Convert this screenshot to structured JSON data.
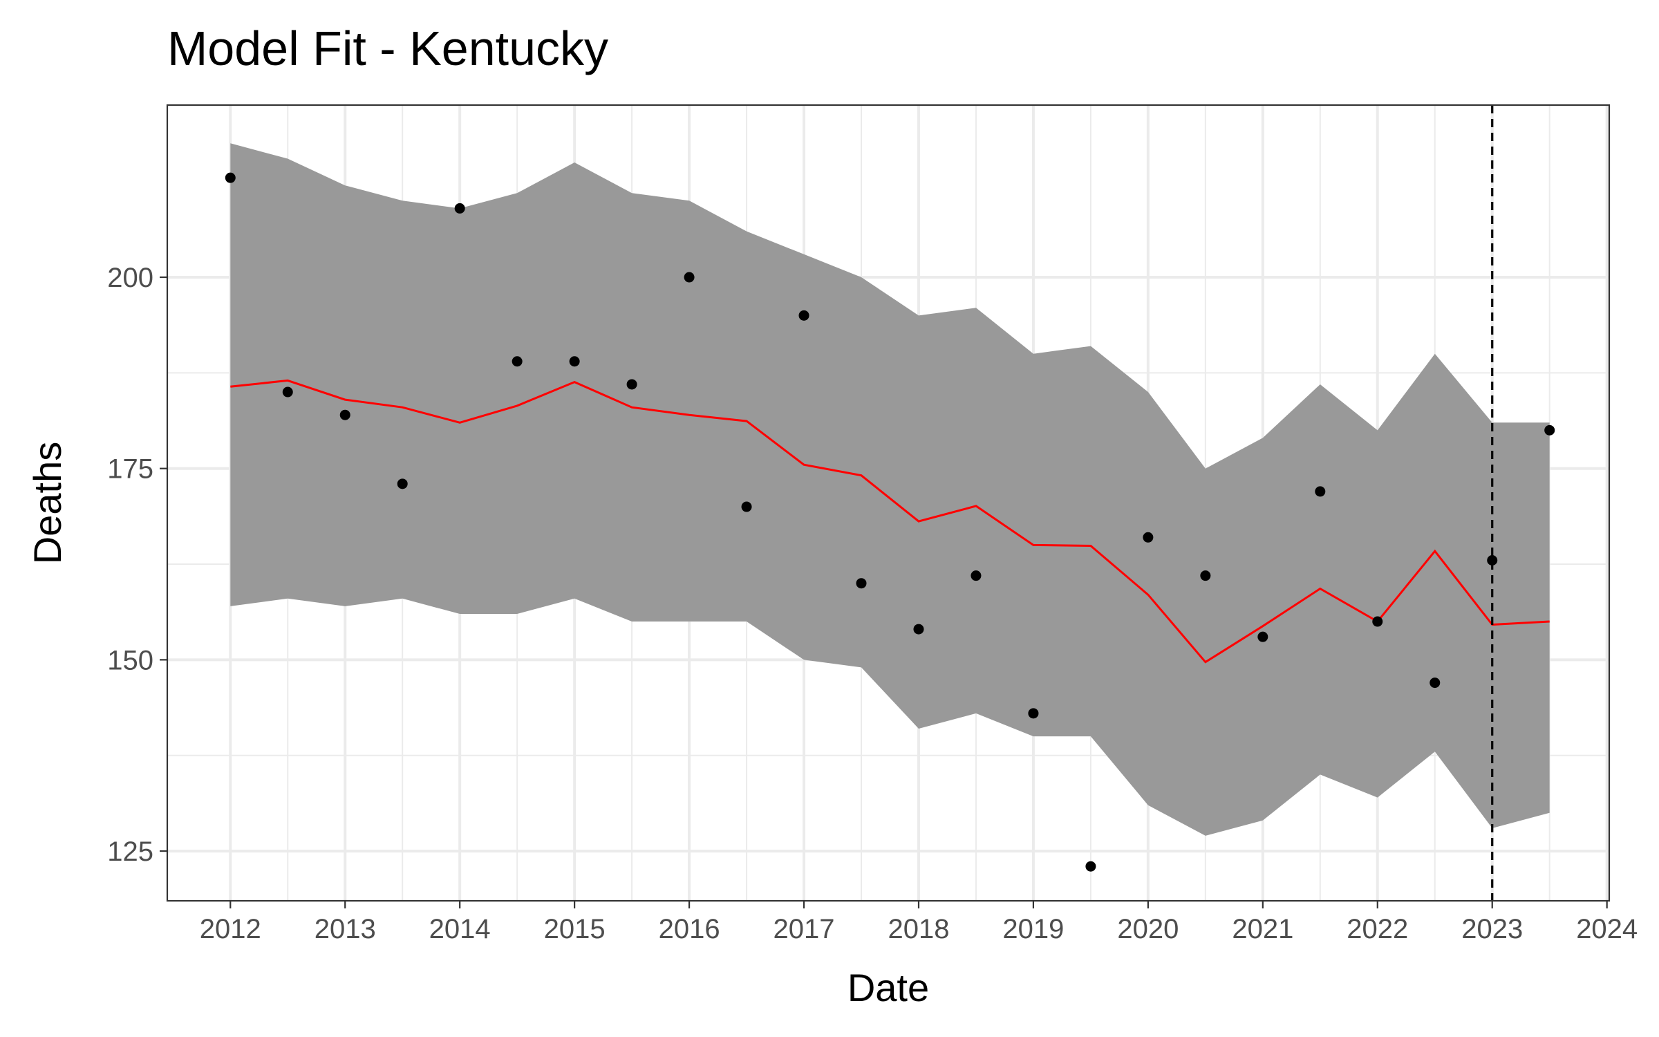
{
  "chart_data": {
    "type": "line",
    "title": "Model Fit - Kentucky",
    "xlabel": "Date",
    "ylabel": "Deaths",
    "x_ticks": [
      "2012",
      "2013",
      "2014",
      "2015",
      "2016",
      "2017",
      "2018",
      "2019",
      "2020",
      "2021",
      "2022",
      "2023",
      "2024"
    ],
    "y_ticks": [
      125,
      150,
      175,
      200
    ],
    "xlim": [
      2011.45,
      2024.02
    ],
    "ylim": [
      118.5,
      222.5
    ],
    "grid": true,
    "colors": {
      "fit": "#ff0000",
      "band": "#999999",
      "points": "#000000",
      "vline": "#000000"
    },
    "x": [
      2012.0,
      2012.5,
      2013.0,
      2013.5,
      2014.0,
      2014.5,
      2015.0,
      2015.5,
      2016.0,
      2016.5,
      2017.0,
      2017.5,
      2018.0,
      2018.5,
      2019.0,
      2019.5,
      2020.0,
      2020.5,
      2021.0,
      2021.5,
      2022.0,
      2022.5,
      2023.0,
      2023.5
    ],
    "series": [
      {
        "kind": "points",
        "values": [
          213,
          185,
          182,
          173,
          209,
          189,
          189,
          186,
          200,
          170,
          195,
          160,
          154,
          161,
          143,
          123,
          166,
          161,
          153,
          172,
          155,
          147,
          163,
          180
        ]
      },
      {
        "kind": "line",
        "values": [
          185.7,
          186.5,
          184.0,
          183.0,
          181.0,
          183.2,
          186.3,
          183.0,
          182.0,
          181.2,
          175.5,
          174.1,
          168.1,
          170.1,
          165.0,
          164.9,
          158.5,
          149.7,
          154.4,
          159.3,
          155.0,
          164.2,
          154.6,
          155.0
        ]
      },
      {
        "kind": "band",
        "upper": [
          217.5,
          215.5,
          212.0,
          210.0,
          209.0,
          211.0,
          215.0,
          211.0,
          210.0,
          206.0,
          203.0,
          200.0,
          195.0,
          196.0,
          190.0,
          191.0,
          185.0,
          175.0,
          179.0,
          186.0,
          180.0,
          190.0,
          181.0,
          181.0
        ],
        "lower": [
          157.0,
          158.0,
          157.0,
          158.0,
          156.0,
          156.0,
          158.0,
          155.0,
          155.0,
          155.0,
          150.0,
          149.0,
          141.0,
          143.0,
          140.0,
          140.0,
          131.0,
          127.0,
          129.0,
          135.0,
          132.0,
          138.0,
          128.0,
          130.0
        ]
      }
    ],
    "vline_x": 2023.0
  }
}
